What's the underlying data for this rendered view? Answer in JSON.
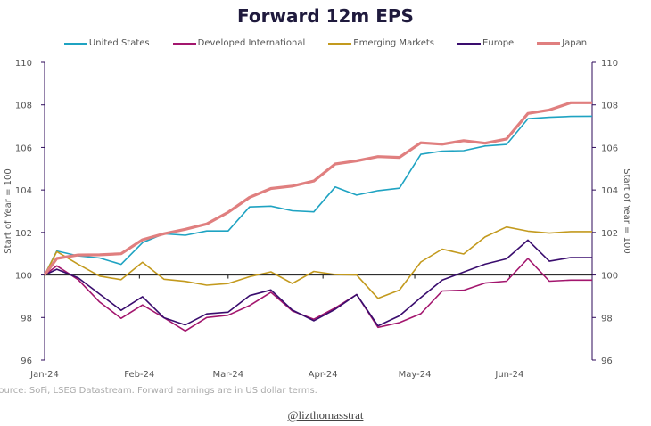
{
  "chart_data": {
    "type": "line",
    "title": "Forward 12m EPS",
    "ylabel": "Start of Year = 100",
    "ylabel_right": "Start of Year = 100",
    "ylim": [
      96,
      110
    ],
    "yticks": [
      96,
      98,
      100,
      102,
      104,
      106,
      108,
      110
    ],
    "xticks": [
      {
        "date": "2024-01-01",
        "label": "Jan-24"
      },
      {
        "date": "2024-02-01",
        "label": "Feb-24"
      },
      {
        "date": "2024-03-01",
        "label": "Mar-24"
      },
      {
        "date": "2024-04-01",
        "label": "Apr-24"
      },
      {
        "date": "2024-05-01",
        "label": "May-24"
      },
      {
        "date": "2024-06-01",
        "label": "Jun-24"
      }
    ],
    "xlim": [
      "2024-01-01",
      "2024-06-28"
    ],
    "reference_line": 100,
    "legend_position": "top",
    "grid": false,
    "x": [
      "2024-01-01",
      "2024-01-05",
      "2024-01-12",
      "2024-01-19",
      "2024-01-26",
      "2024-02-02",
      "2024-02-09",
      "2024-02-16",
      "2024-02-23",
      "2024-03-01",
      "2024-03-08",
      "2024-03-15",
      "2024-03-22",
      "2024-03-29",
      "2024-04-05",
      "2024-04-12",
      "2024-04-19",
      "2024-04-26",
      "2024-05-03",
      "2024-05-10",
      "2024-05-17",
      "2024-05-24",
      "2024-05-31",
      "2024-06-07",
      "2024-06-14",
      "2024-06-21",
      "2024-06-28"
    ],
    "series": [
      {
        "name": "United States",
        "color": "#1fa3c2",
        "width": 1.6,
        "values": [
          100,
          101.13,
          100.9,
          100.8,
          100.5,
          101.52,
          101.94,
          101.87,
          102.07,
          102.07,
          103.2,
          103.24,
          103.02,
          102.97,
          104.14,
          103.76,
          103.97,
          104.08,
          105.68,
          105.83,
          105.85,
          106.07,
          106.14,
          107.35,
          107.42,
          107.46,
          107.47
        ]
      },
      {
        "name": "Developed International",
        "color": "#a3166e",
        "width": 1.6,
        "values": [
          100,
          100.43,
          99.78,
          98.73,
          97.96,
          98.59,
          97.99,
          97.37,
          98.0,
          98.11,
          98.56,
          99.19,
          98.31,
          97.92,
          98.45,
          99.08,
          97.54,
          97.76,
          98.18,
          99.25,
          99.28,
          99.62,
          99.71,
          100.78,
          99.71,
          99.76,
          99.76
        ]
      },
      {
        "name": "Emerging Markets",
        "color": "#c39a1e",
        "width": 1.6,
        "values": [
          100,
          101.1,
          100.5,
          99.95,
          99.78,
          100.6,
          99.8,
          99.7,
          99.52,
          99.6,
          99.92,
          100.15,
          99.6,
          100.17,
          100.02,
          100,
          98.9,
          99.29,
          100.61,
          101.22,
          100.99,
          101.79,
          102.26,
          102.06,
          101.97,
          102.04,
          102.04
        ]
      },
      {
        "name": "Europe",
        "color": "#3a0d6e",
        "width": 1.6,
        "values": [
          100,
          100.27,
          99.87,
          99.1,
          98.34,
          98.98,
          97.99,
          97.65,
          98.17,
          98.25,
          99.03,
          99.3,
          98.35,
          97.85,
          98.39,
          99.08,
          97.61,
          98.08,
          98.94,
          99.76,
          100.14,
          100.51,
          100.76,
          101.64,
          100.65,
          100.82,
          100.82
        ]
      },
      {
        "name": "Japan",
        "color": "#e07f7f",
        "width": 3.2,
        "values": [
          100,
          100.78,
          100.94,
          100.95,
          101.0,
          101.66,
          101.94,
          102.15,
          102.4,
          102.95,
          103.65,
          104.07,
          104.18,
          104.42,
          105.22,
          105.37,
          105.57,
          105.53,
          106.22,
          106.15,
          106.32,
          106.2,
          106.4,
          107.6,
          107.76,
          108.1,
          108.1
        ]
      }
    ]
  },
  "footer": {
    "source": "Source: SoFi, LSEG Datastream. Forward earnings are in US dollar terms.",
    "handle": "@lizthomasstrat"
  }
}
